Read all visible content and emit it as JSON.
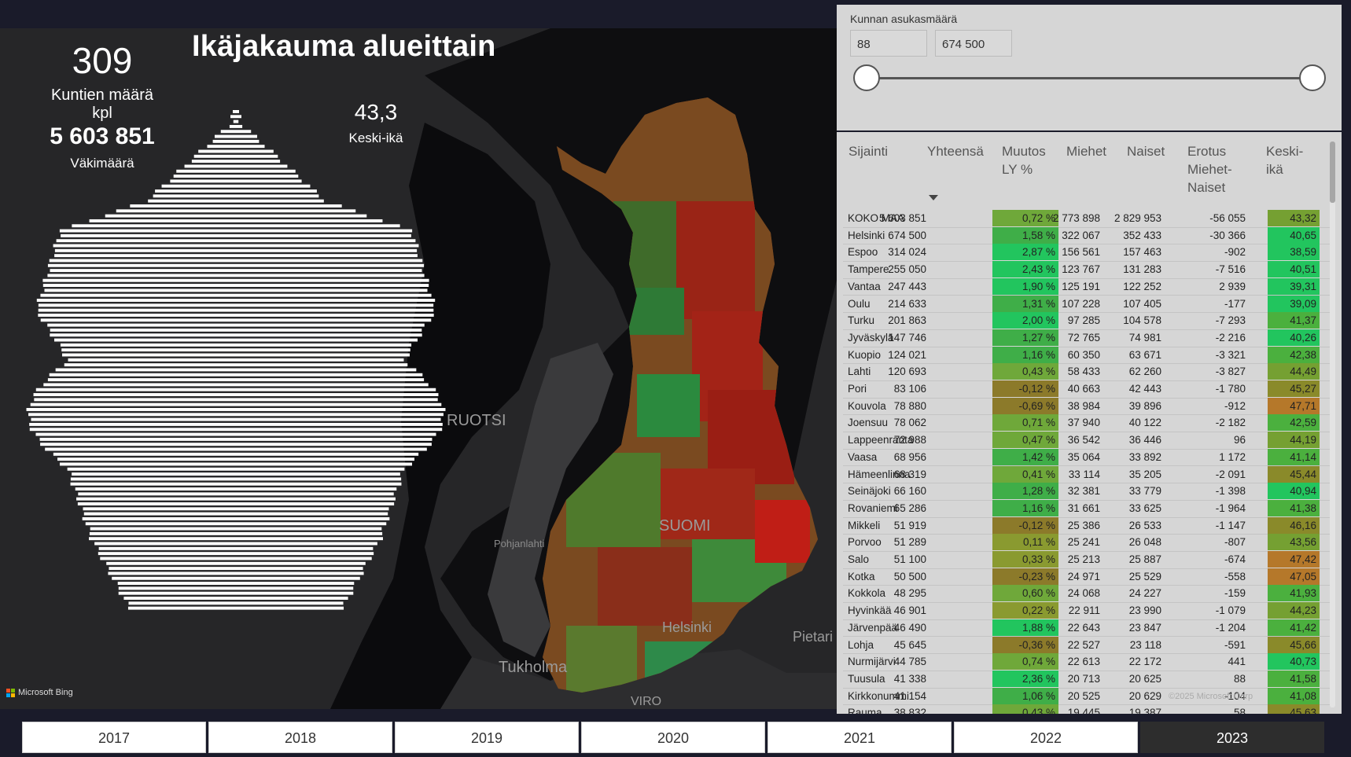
{
  "title": "Ikäjakauma alueittain",
  "kpis": {
    "municipalities_value": "309",
    "municipalities_label": "Kuntien määrä kpl",
    "population_value": "5 603 851",
    "population_label": "Väkimäärä",
    "avg_age_value": "43,3",
    "avg_age_label": "Keski-ikä"
  },
  "map": {
    "labels": {
      "ruotsi": "RUOTSI",
      "suomi": "SUOMI",
      "pohjanlahti": "Pohjanlahti",
      "helsinki": "Helsinki",
      "tukholma": "Tukholma",
      "viro": "VIRO",
      "pietari": "Pietari"
    },
    "bing": "Microsoft Bing",
    "copyright": "©2025 Microsoft Corp"
  },
  "slicer": {
    "label": "Kunnan asukasmäärä",
    "min_value": "88",
    "max_value": "674 500"
  },
  "table": {
    "headers": {
      "c0": "Sijainti",
      "c1": "Yhteensä",
      "c2": "Muutos LY %",
      "c3": "Miehet",
      "c4": "Naiset",
      "c5": "Erotus Miehet-Naiset",
      "c6": "Keski-ikä"
    },
    "rows": [
      [
        "KOKO MAA",
        "5 603 851",
        "0,72 %",
        "2 773 898",
        "2 829 953",
        "-56 055",
        "43,32"
      ],
      [
        "Helsinki",
        "674 500",
        "1,58 %",
        "322 067",
        "352 433",
        "-30 366",
        "40,65"
      ],
      [
        "Espoo",
        "314 024",
        "2,87 %",
        "156 561",
        "157 463",
        "-902",
        "38,59"
      ],
      [
        "Tampere",
        "255 050",
        "2,43 %",
        "123 767",
        "131 283",
        "-7 516",
        "40,51"
      ],
      [
        "Vantaa",
        "247 443",
        "1,90 %",
        "125 191",
        "122 252",
        "2 939",
        "39,31"
      ],
      [
        "Oulu",
        "214 633",
        "1,31 %",
        "107 228",
        "107 405",
        "-177",
        "39,09"
      ],
      [
        "Turku",
        "201 863",
        "2,00 %",
        "97 285",
        "104 578",
        "-7 293",
        "41,37"
      ],
      [
        "Jyväskylä",
        "147 746",
        "1,27 %",
        "72 765",
        "74 981",
        "-2 216",
        "40,26"
      ],
      [
        "Kuopio",
        "124 021",
        "1,16 %",
        "60 350",
        "63 671",
        "-3 321",
        "42,38"
      ],
      [
        "Lahti",
        "120 693",
        "0,43 %",
        "58 433",
        "62 260",
        "-3 827",
        "44,49"
      ],
      [
        "Pori",
        "83 106",
        "-0,12 %",
        "40 663",
        "42 443",
        "-1 780",
        "45,27"
      ],
      [
        "Kouvola",
        "78 880",
        "-0,69 %",
        "38 984",
        "39 896",
        "-912",
        "47,71"
      ],
      [
        "Joensuu",
        "78 062",
        "0,71 %",
        "37 940",
        "40 122",
        "-2 182",
        "42,59"
      ],
      [
        "Lappeenranta",
        "72 988",
        "0,47 %",
        "36 542",
        "36 446",
        "96",
        "44,19"
      ],
      [
        "Vaasa",
        "68 956",
        "1,42 %",
        "35 064",
        "33 892",
        "1 172",
        "41,14"
      ],
      [
        "Hämeenlinna",
        "68 319",
        "0,41 %",
        "33 114",
        "35 205",
        "-2 091",
        "45,44"
      ],
      [
        "Seinäjoki",
        "66 160",
        "1,28 %",
        "32 381",
        "33 779",
        "-1 398",
        "40,94"
      ],
      [
        "Rovaniemi",
        "65 286",
        "1,16 %",
        "31 661",
        "33 625",
        "-1 964",
        "41,38"
      ],
      [
        "Mikkeli",
        "51 919",
        "-0,12 %",
        "25 386",
        "26 533",
        "-1 147",
        "46,16"
      ],
      [
        "Porvoo",
        "51 289",
        "0,11 %",
        "25 241",
        "26 048",
        "-807",
        "43,56"
      ],
      [
        "Salo",
        "51 100",
        "0,33 %",
        "25 213",
        "25 887",
        "-674",
        "47,42"
      ],
      [
        "Kotka",
        "50 500",
        "-0,23 %",
        "24 971",
        "25 529",
        "-558",
        "47,05"
      ],
      [
        "Kokkola",
        "48 295",
        "0,60 %",
        "24 068",
        "24 227",
        "-159",
        "41,93"
      ],
      [
        "Hyvinkää",
        "46 901",
        "0,22 %",
        "22 911",
        "23 990",
        "-1 079",
        "44,23"
      ],
      [
        "Järvenpää",
        "46 490",
        "1,88 %",
        "22 643",
        "23 847",
        "-1 204",
        "41,42"
      ],
      [
        "Lohja",
        "45 645",
        "-0,36 %",
        "22 527",
        "23 118",
        "-591",
        "45,66"
      ],
      [
        "Nurmijärvi",
        "44 785",
        "0,74 %",
        "22 613",
        "22 172",
        "441",
        "40,73"
      ],
      [
        "Tuusula",
        "41 338",
        "2,36 %",
        "20 713",
        "20 625",
        "88",
        "41,58"
      ],
      [
        "Kirkkonummi",
        "41 154",
        "1,06 %",
        "20 525",
        "20 629",
        "-104",
        "41,08"
      ],
      [
        "Rauma",
        "38 832",
        "0,43 %",
        "19 445",
        "19 387",
        "58",
        "45,63"
      ]
    ]
  },
  "years": [
    "2017",
    "2018",
    "2019",
    "2020",
    "2021",
    "2022",
    "2023"
  ],
  "selected_year": "2023",
  "colors": {
    "high_green": "#22c55e",
    "mid_green": "#5aa63a",
    "olive": "#8a8a2a",
    "orange": "#b5782a",
    "map_red": "#b01e16",
    "map_green": "#2fa84a"
  }
}
